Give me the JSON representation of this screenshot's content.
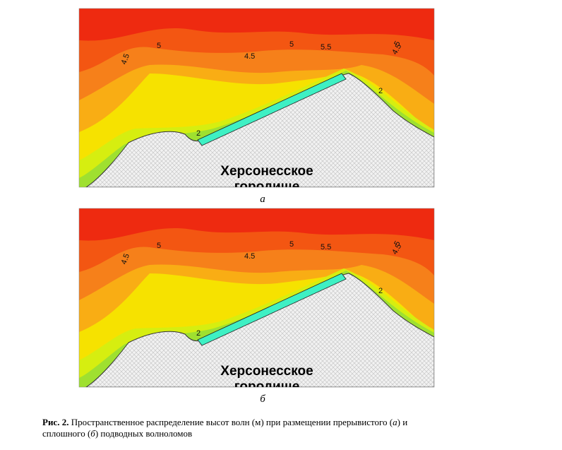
{
  "figures": [
    {
      "panel": "а",
      "place": [
        "Херсонесское",
        "городище"
      ],
      "contours": [
        5,
        4.5,
        4.5,
        5,
        5.5,
        5,
        4.5,
        2,
        2
      ]
    },
    {
      "panel": "б",
      "place": [
        "Херсонесское",
        "городище"
      ],
      "contours": [
        5,
        4.5,
        4.5,
        5,
        5.5,
        5,
        4.5,
        2,
        2
      ]
    }
  ],
  "caption": {
    "label": "Рис. 2.",
    "text1": " Пространственное распределение высот волн (м) при размещении прерывистого (",
    "italic1": "а",
    "text2": ") и",
    "text3": "сплошного (",
    "italic2": "б",
    "text4": ") подводных волноломов"
  }
}
